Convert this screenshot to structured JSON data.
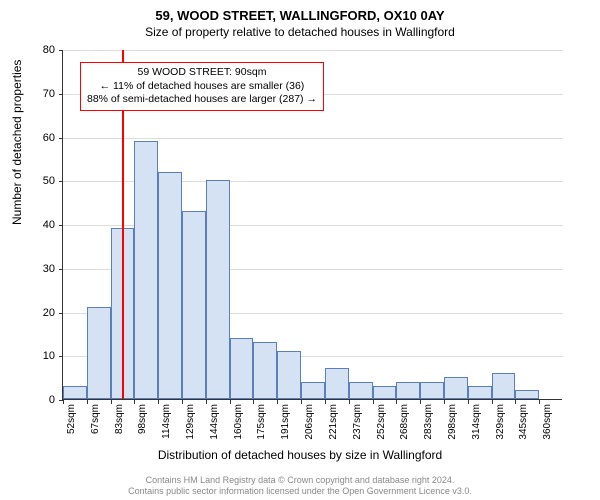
{
  "chart": {
    "type": "histogram",
    "title": "59, WOOD STREET, WALLINGFORD, OX10 0AY",
    "subtitle": "Size of property relative to detached houses in Wallingford",
    "ylabel": "Number of detached properties",
    "xlabel": "Distribution of detached houses by size in Wallingford",
    "ylim": [
      0,
      80
    ],
    "ytick_step": 10,
    "xtick_labels": [
      "52sqm",
      "67sqm",
      "83sqm",
      "98sqm",
      "114sqm",
      "129sqm",
      "144sqm",
      "160sqm",
      "175sqm",
      "191sqm",
      "206sqm",
      "221sqm",
      "237sqm",
      "252sqm",
      "268sqm",
      "283sqm",
      "298sqm",
      "314sqm",
      "329sqm",
      "345sqm",
      "360sqm"
    ],
    "bars": [
      3,
      21,
      39,
      59,
      52,
      43,
      50,
      14,
      13,
      11,
      4,
      7,
      4,
      3,
      4,
      4,
      5,
      3,
      6,
      2,
      0
    ],
    "bar_fill": "#d5e2f4",
    "bar_stroke": "#5b7fb8",
    "marker_position": 2.47,
    "marker_color": "#ff0000",
    "grid_color": "#dddddd",
    "background_color": "#ffffff",
    "annotation": {
      "line1": "59 WOOD STREET: 90sqm",
      "line2": "← 11% of detached houses are smaller (36)",
      "line3": "88% of semi-detached houses are larger (287) →",
      "border_color": "#ff0000"
    },
    "footer_line1": "Contains HM Land Registry data © Crown copyright and database right 2024.",
    "footer_line2": "Contains public sector information licensed under the Open Government Licence v3.0."
  }
}
